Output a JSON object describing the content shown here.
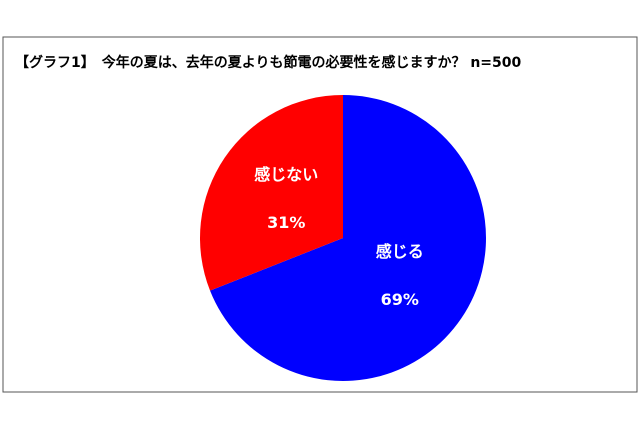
{
  "chart_data": {
    "type": "pie",
    "title": "【グラフ1】　今年の夏は、去年の夏よりも節電の必要性を感じますか？ n=500",
    "categories": [
      "感じる",
      "感じない"
    ],
    "values": [
      69,
      31
    ],
    "value_labels": [
      "69%",
      "31%"
    ],
    "colors": [
      "#0000ff",
      "#ff0000"
    ]
  }
}
